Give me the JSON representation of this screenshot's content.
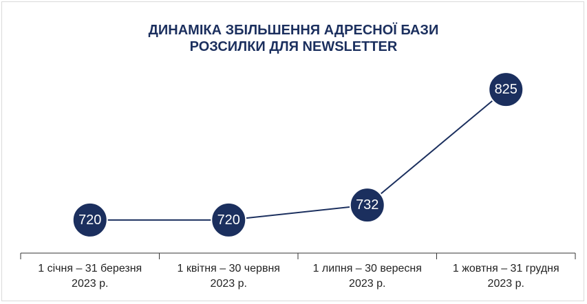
{
  "chart_data": {
    "type": "line",
    "title": "ДИНАМІКА ЗБІЛЬШЕННЯ АДРЕСНОЇ БАЗИ\nРОЗСИЛКИ ДЛЯ NEWSLETTER",
    "categories": [
      "1 січня – 31 березня\n2023 р.",
      "1 квітня – 30 червня\n2023 р.",
      "1 липня – 30 вересня\n2023 р.",
      "1 жовтня – 31 грудня\n2023 р."
    ],
    "values": [
      720,
      720,
      732,
      825
    ],
    "color": "#1b2f5e",
    "ylim": [
      700,
      840
    ]
  }
}
